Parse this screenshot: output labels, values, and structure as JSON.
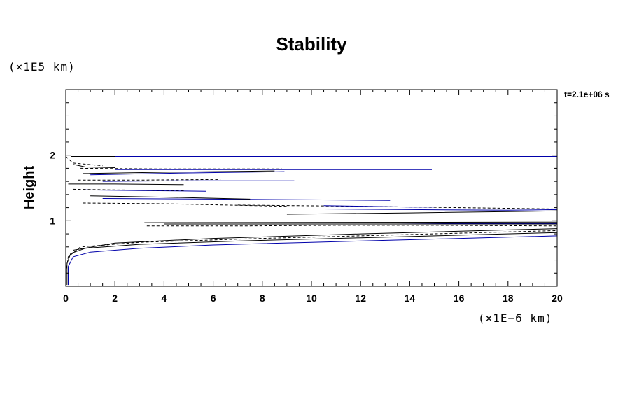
{
  "chart_data": {
    "type": "line",
    "title": "Stability",
    "ylabel": "Height",
    "y_units": "(×1E5 km)",
    "x_units": "(×1E−6 km)",
    "timestamp": "t=2.1e+06 s",
    "xlim": [
      0,
      20
    ],
    "ylim": [
      0,
      3
    ],
    "x_ticks": [
      "0",
      "2",
      "4",
      "6",
      "8",
      "10",
      "12",
      "14",
      "16",
      "18",
      "20"
    ],
    "y_ticks": [
      "1",
      "2"
    ],
    "colors": {
      "solid": "#000000",
      "dashed": "#000000",
      "blue": "#0000aa"
    },
    "series": [
      {
        "style": "blue",
        "points": [
          [
            0.1,
            0.02
          ],
          [
            0.1,
            0.3
          ],
          [
            0.3,
            0.45
          ],
          [
            1.0,
            0.52
          ],
          [
            3,
            0.58
          ],
          [
            6,
            0.63
          ],
          [
            10,
            0.67
          ],
          [
            14,
            0.71
          ],
          [
            18,
            0.75
          ],
          [
            20,
            0.77
          ]
        ]
      },
      {
        "style": "solid",
        "points": [
          [
            0.05,
            0.02
          ],
          [
            0.05,
            0.35
          ],
          [
            0.2,
            0.5
          ],
          [
            0.8,
            0.58
          ],
          [
            3,
            0.64
          ],
          [
            7,
            0.69
          ],
          [
            12,
            0.74
          ],
          [
            17,
            0.79
          ],
          [
            20,
            0.82
          ]
        ]
      },
      {
        "style": "dashed",
        "points": [
          [
            0.0,
            0.2
          ],
          [
            0.1,
            0.45
          ],
          [
            0.6,
            0.6
          ],
          [
            3,
            0.67
          ],
          [
            8,
            0.73
          ],
          [
            14,
            0.79
          ],
          [
            20,
            0.85
          ]
        ]
      },
      {
        "style": "solid",
        "points": [
          [
            0.3,
            0.55
          ],
          [
            2,
            0.66
          ],
          [
            6,
            0.73
          ],
          [
            12,
            0.8
          ],
          [
            18,
            0.86
          ],
          [
            20,
            0.88
          ]
        ]
      },
      {
        "style": "dashed",
        "points": [
          [
            3.3,
            0.92
          ],
          [
            7,
            0.92
          ],
          [
            11,
            0.93
          ],
          [
            15,
            0.93
          ],
          [
            20,
            0.92
          ]
        ]
      },
      {
        "style": "solid",
        "points": [
          [
            4,
            0.95
          ],
          [
            8,
            0.95
          ],
          [
            12,
            0.95
          ],
          [
            16,
            0.95
          ],
          [
            20,
            0.95
          ]
        ]
      },
      {
        "style": "blue",
        "points": [
          [
            8.5,
            0.97
          ],
          [
            12,
            0.97
          ],
          [
            16,
            0.96
          ],
          [
            20,
            0.96
          ]
        ]
      },
      {
        "style": "solid",
        "points": [
          [
            3.2,
            0.97
          ],
          [
            20,
            0.98
          ]
        ]
      },
      {
        "style": "solid",
        "points": [
          [
            9,
            1.1
          ],
          [
            14,
            1.12
          ],
          [
            18,
            1.14
          ],
          [
            20,
            1.15
          ]
        ]
      },
      {
        "style": "blue",
        "points": [
          [
            10.5,
            1.18
          ],
          [
            14,
            1.17
          ],
          [
            18,
            1.16
          ],
          [
            20,
            1.17
          ]
        ]
      },
      {
        "style": "dashed",
        "points": [
          [
            7,
            1.24
          ],
          [
            12,
            1.22
          ],
          [
            16,
            1.2
          ],
          [
            20,
            1.18
          ]
        ]
      },
      {
        "style": "blue",
        "points": [
          [
            1.5,
            1.34
          ],
          [
            6,
            1.33
          ],
          [
            10,
            1.32
          ],
          [
            13.2,
            1.31
          ]
        ]
      },
      {
        "style": "blue",
        "points": [
          [
            10.5,
            1.23
          ],
          [
            14,
            1.21
          ],
          [
            15,
            1.21
          ]
        ]
      },
      {
        "style": "dashed",
        "points": [
          [
            0.7,
            1.27
          ],
          [
            4,
            1.26
          ],
          [
            9,
            1.22
          ]
        ]
      },
      {
        "style": "solid",
        "points": [
          [
            1.0,
            1.38
          ],
          [
            4,
            1.36
          ],
          [
            7.5,
            1.33
          ]
        ]
      },
      {
        "style": "blue",
        "points": [
          [
            0.8,
            1.47
          ],
          [
            3,
            1.46
          ],
          [
            5.7,
            1.45
          ]
        ]
      },
      {
        "style": "dashed",
        "points": [
          [
            0.3,
            1.48
          ],
          [
            2,
            1.47
          ],
          [
            4.8,
            1.46
          ]
        ]
      },
      {
        "style": "solid",
        "points": [
          [
            0.1,
            1.56
          ],
          [
            2,
            1.56
          ],
          [
            4.8,
            1.55
          ]
        ]
      },
      {
        "style": "blue",
        "points": [
          [
            1.5,
            1.6
          ],
          [
            5,
            1.61
          ],
          [
            9.3,
            1.61
          ]
        ]
      },
      {
        "style": "dashed",
        "points": [
          [
            0.5,
            1.62
          ],
          [
            3,
            1.62
          ],
          [
            6.3,
            1.63
          ]
        ]
      },
      {
        "style": "blue",
        "points": [
          [
            1.0,
            1.7
          ],
          [
            5,
            1.73
          ],
          [
            8.9,
            1.75
          ]
        ]
      },
      {
        "style": "solid",
        "points": [
          [
            0.7,
            1.72
          ],
          [
            4,
            1.74
          ],
          [
            8.5,
            1.76
          ]
        ]
      },
      {
        "style": "blue",
        "points": [
          [
            2,
            1.78
          ],
          [
            8,
            1.78
          ],
          [
            14.9,
            1.78
          ]
        ]
      },
      {
        "style": "dashed",
        "points": [
          [
            0.6,
            1.8
          ],
          [
            4,
            1.79
          ],
          [
            8.8,
            1.79
          ]
        ]
      },
      {
        "style": "solid",
        "points": [
          [
            0.3,
            1.86
          ],
          [
            0.8,
            1.82
          ],
          [
            2,
            1.81
          ]
        ]
      },
      {
        "style": "dashed",
        "points": [
          [
            0.0,
            1.98
          ],
          [
            0.3,
            1.88
          ],
          [
            1.5,
            1.84
          ]
        ]
      },
      {
        "style": "solid",
        "points": [
          [
            0.2,
            1.98
          ],
          [
            6,
            1.98
          ],
          [
            12,
            1.98
          ],
          [
            20,
            1.98
          ]
        ]
      },
      {
        "style": "blue",
        "points": [
          [
            2,
            1.98
          ],
          [
            10,
            1.98
          ],
          [
            20,
            1.98
          ]
        ]
      }
    ]
  }
}
